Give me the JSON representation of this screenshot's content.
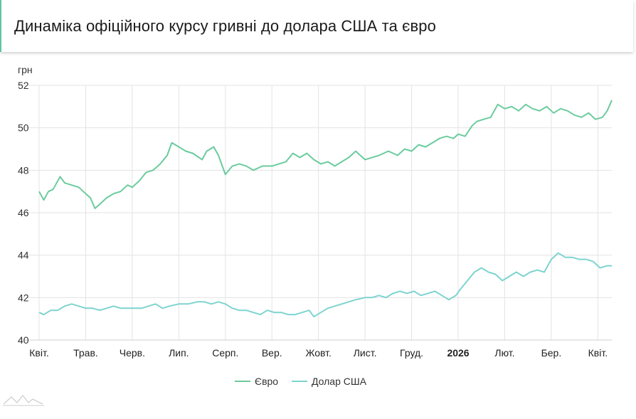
{
  "header": {
    "title": "Динаміка офіційного курсу гривні до долара США та євро"
  },
  "chart_data": {
    "type": "line",
    "unit_label": "грн",
    "ylim": [
      40,
      52
    ],
    "y_ticks": [
      40,
      42,
      44,
      46,
      48,
      50,
      52
    ],
    "x_tick_labels": [
      "Квіт.",
      "Трав.",
      "Черв.",
      "Лип.",
      "Серп.",
      "Вер.",
      "Жовт.",
      "Лист.",
      "Груд.",
      "2026",
      "Лют.",
      "Бер.",
      "Квіт."
    ],
    "x_tick_bold": [
      false,
      false,
      false,
      false,
      false,
      false,
      false,
      false,
      false,
      true,
      false,
      false,
      false
    ],
    "x_range_months": [
      0,
      12.3
    ],
    "grid": true,
    "legend_position": "bottom-center",
    "series": [
      {
        "name": "Євро",
        "color": "#6bcb9e",
        "x": [
          0,
          0.1,
          0.2,
          0.3,
          0.45,
          0.55,
          0.7,
          0.85,
          1.0,
          1.1,
          1.2,
          1.3,
          1.45,
          1.6,
          1.75,
          1.9,
          2.0,
          2.15,
          2.3,
          2.45,
          2.6,
          2.75,
          2.85,
          3.0,
          3.15,
          3.3,
          3.5,
          3.6,
          3.75,
          3.85,
          4.0,
          4.15,
          4.3,
          4.45,
          4.6,
          4.8,
          5.0,
          5.15,
          5.3,
          5.45,
          5.6,
          5.75,
          5.9,
          6.05,
          6.2,
          6.35,
          6.5,
          6.65,
          6.8,
          7.0,
          7.15,
          7.3,
          7.5,
          7.7,
          7.85,
          8.0,
          8.15,
          8.3,
          8.45,
          8.6,
          8.75,
          8.9,
          9.0,
          9.15,
          9.3,
          9.4,
          9.55,
          9.7,
          9.85,
          10.0,
          10.15,
          10.3,
          10.45,
          10.6,
          10.75,
          10.9,
          11.05,
          11.2,
          11.35,
          11.5,
          11.65,
          11.8,
          11.95,
          12.1,
          12.2,
          12.3
        ],
        "values": [
          47.0,
          46.6,
          47.0,
          47.1,
          47.7,
          47.4,
          47.3,
          47.2,
          46.9,
          46.7,
          46.2,
          46.4,
          46.7,
          46.9,
          47.0,
          47.3,
          47.2,
          47.5,
          47.9,
          48.0,
          48.3,
          48.7,
          49.3,
          49.1,
          48.9,
          48.8,
          48.5,
          48.9,
          49.1,
          48.7,
          47.8,
          48.2,
          48.3,
          48.2,
          48.0,
          48.2,
          48.2,
          48.3,
          48.4,
          48.8,
          48.6,
          48.8,
          48.5,
          48.3,
          48.4,
          48.2,
          48.4,
          48.6,
          48.9,
          48.5,
          48.6,
          48.7,
          48.9,
          48.7,
          49.0,
          48.9,
          49.2,
          49.1,
          49.3,
          49.5,
          49.6,
          49.5,
          49.7,
          49.6,
          50.1,
          50.3,
          50.4,
          50.5,
          51.1,
          50.9,
          51.0,
          50.8,
          51.1,
          50.9,
          50.8,
          51.0,
          50.7,
          50.9,
          50.8,
          50.6,
          50.5,
          50.7,
          50.4,
          50.5,
          50.8,
          51.3
        ]
      },
      {
        "name": "Долар США",
        "color": "#7dd4cf",
        "x": [
          0,
          0.1,
          0.25,
          0.4,
          0.55,
          0.7,
          0.85,
          1.0,
          1.15,
          1.3,
          1.45,
          1.6,
          1.75,
          1.9,
          2.05,
          2.2,
          2.35,
          2.5,
          2.65,
          2.8,
          3.0,
          3.2,
          3.4,
          3.55,
          3.7,
          3.85,
          4.0,
          4.15,
          4.3,
          4.45,
          4.6,
          4.75,
          4.9,
          5.05,
          5.2,
          5.35,
          5.5,
          5.65,
          5.8,
          5.9,
          6.05,
          6.2,
          6.35,
          6.5,
          6.65,
          6.8,
          7.0,
          7.15,
          7.3,
          7.45,
          7.6,
          7.75,
          7.9,
          8.05,
          8.2,
          8.35,
          8.5,
          8.65,
          8.8,
          8.95,
          9.05,
          9.2,
          9.35,
          9.5,
          9.65,
          9.8,
          9.95,
          10.1,
          10.25,
          10.4,
          10.55,
          10.7,
          10.85,
          11.0,
          11.15,
          11.3,
          11.45,
          11.6,
          11.75,
          11.9,
          12.05,
          12.2,
          12.3
        ],
        "values": [
          41.3,
          41.2,
          41.4,
          41.4,
          41.6,
          41.7,
          41.6,
          41.5,
          41.5,
          41.4,
          41.5,
          41.6,
          41.5,
          41.5,
          41.5,
          41.5,
          41.6,
          41.7,
          41.5,
          41.6,
          41.7,
          41.7,
          41.8,
          41.8,
          41.7,
          41.8,
          41.7,
          41.5,
          41.4,
          41.4,
          41.3,
          41.2,
          41.4,
          41.3,
          41.3,
          41.2,
          41.2,
          41.3,
          41.4,
          41.1,
          41.3,
          41.5,
          41.6,
          41.7,
          41.8,
          41.9,
          42.0,
          42.0,
          42.1,
          42.0,
          42.2,
          42.3,
          42.2,
          42.3,
          42.1,
          42.2,
          42.3,
          42.1,
          41.9,
          42.1,
          42.4,
          42.8,
          43.2,
          43.4,
          43.2,
          43.1,
          42.8,
          43.0,
          43.2,
          43.0,
          43.2,
          43.3,
          43.2,
          43.8,
          44.1,
          43.9,
          43.9,
          43.8,
          43.8,
          43.7,
          43.4,
          43.5,
          43.5
        ]
      }
    ]
  }
}
